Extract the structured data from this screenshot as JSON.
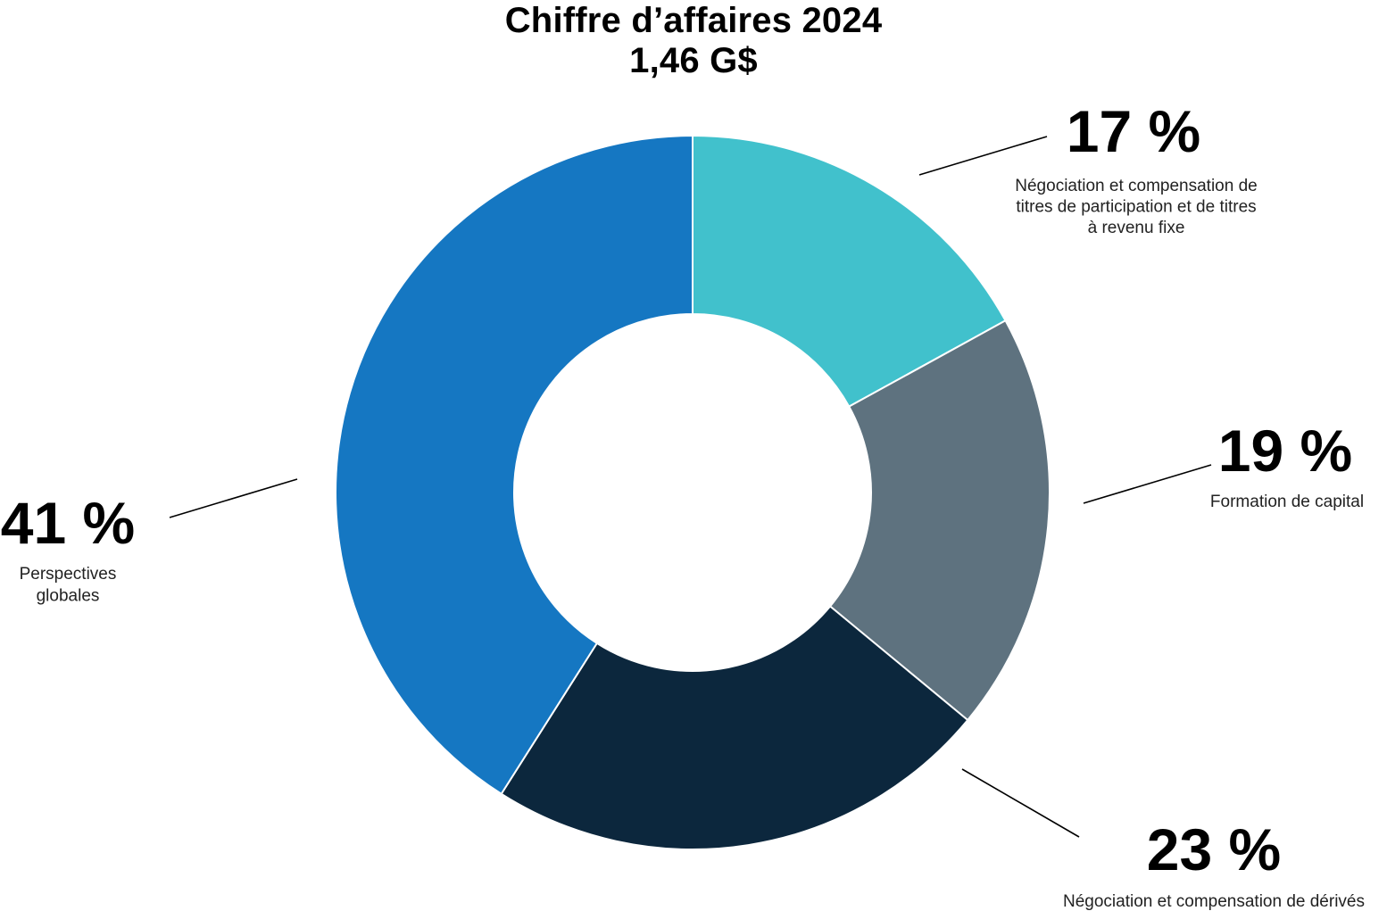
{
  "title": {
    "line1": "Chiffre d’affaires 2024",
    "line2": "1,46 G$"
  },
  "chart_data": {
    "type": "pie",
    "donut": true,
    "title": "Chiffre d’affaires 2024",
    "subtitle": "1,46 G$",
    "series": [
      {
        "name": "Négociation et compensation de titres de participation et de titres à revenu fixe",
        "value": 17,
        "label": "17 %",
        "text_lines": [
          "Négociation et compensation de",
          "titres de participation et de titres",
          "à revenu fixe"
        ],
        "color": "#41C1CC"
      },
      {
        "name": "Formation de capital",
        "value": 19,
        "label": "19 %",
        "text_lines": [
          "Formation de capital"
        ],
        "color": "#5E727F"
      },
      {
        "name": "Négociation et compensation de dérivés",
        "value": 23,
        "label": "23 %",
        "text_lines": [
          "Négociation et compensation de dérivés"
        ],
        "color": "#0C273D"
      },
      {
        "name": "Perspectives globales",
        "value": 41,
        "label": "41 %",
        "text_lines": [
          "Perspectives",
          "globales"
        ],
        "color": "#1577C2"
      }
    ]
  }
}
